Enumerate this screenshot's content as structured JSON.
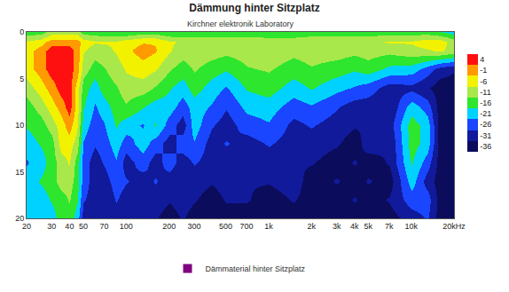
{
  "chart_data": {
    "type": "heatmap",
    "title": "Dämmung hinter Sitzplatz",
    "subtitle": "Kirchner elektronik Laboratory",
    "log": "x",
    "grid": true,
    "legend": "bottom",
    "series": [
      {
        "name": "Dämmaterial hinter Sitzplatz",
        "color": "#800080"
      }
    ],
    "x": [
      20,
      25,
      30,
      35,
      40,
      45,
      50,
      60,
      70,
      85,
      100,
      130,
      160,
      200,
      250,
      300,
      400,
      500,
      700,
      1000,
      1500,
      2000,
      3000,
      4000,
      5000,
      7000,
      10000,
      13000,
      16000,
      20000
    ],
    "y": [
      0,
      1,
      2,
      4,
      6,
      8,
      10,
      12,
      14,
      16,
      18,
      20
    ],
    "z": [
      [
        -16,
        -16,
        -11,
        -11,
        -11,
        -11,
        -16,
        -16,
        -18,
        -18,
        -18,
        -16,
        -16,
        -18,
        -18,
        -18,
        -18,
        -18,
        -18,
        -18,
        -18,
        -16,
        -16,
        -16,
        -16,
        -16,
        -16,
        -16,
        -18,
        -21
      ],
      [
        -8,
        -6,
        -1,
        -1,
        -1,
        -1,
        -6,
        -8,
        -8,
        -8,
        -6,
        -4,
        -4,
        -8,
        -9,
        -9,
        -9,
        -9,
        -9,
        -10,
        -10,
        -10,
        -10,
        -10,
        -10,
        -8,
        -8,
        -6,
        -6,
        -11
      ],
      [
        -6,
        -1,
        4,
        4,
        4,
        -1,
        -8,
        -11,
        -10,
        -8,
        -5,
        -1,
        -3,
        -8,
        -11,
        -10,
        -11,
        -12,
        -11,
        -10,
        -12,
        -11,
        -11,
        -12,
        -11,
        -12,
        -10,
        -9,
        -8,
        -10
      ],
      [
        -6,
        -1,
        4,
        4,
        4,
        -1,
        -11,
        -16,
        -14,
        -11,
        -8,
        -6,
        -8,
        -13,
        -16,
        -13,
        -16,
        -18,
        -14,
        -13,
        -16,
        -14,
        -16,
        -18,
        -16,
        -20,
        -21,
        -26,
        -31,
        -33
      ],
      [
        -11,
        -6,
        -1,
        4,
        4,
        -6,
        -16,
        -21,
        -16,
        -14,
        -11,
        -11,
        -14,
        -18,
        -21,
        -16,
        -21,
        -24,
        -18,
        -16,
        -21,
        -18,
        -22,
        -24,
        -26,
        -31,
        -30,
        -33,
        -36,
        -36
      ],
      [
        -16,
        -11,
        -6,
        -1,
        4,
        -6,
        -18,
        -24,
        -21,
        -16,
        -14,
        -18,
        -21,
        -21,
        -26,
        -21,
        -24,
        -28,
        -22,
        -21,
        -26,
        -24,
        -28,
        -31,
        -31,
        -33,
        -21,
        -26,
        -36,
        -36
      ],
      [
        -18,
        -16,
        -11,
        -6,
        -1,
        -8,
        -21,
        -26,
        -24,
        -18,
        -21,
        -24,
        -18,
        -26,
        -31,
        -21,
        -28,
        -31,
        -26,
        -24,
        -30,
        -28,
        -31,
        -33,
        -33,
        -31,
        -16,
        -21,
        -36,
        -36
      ],
      [
        -21,
        -18,
        -16,
        -6,
        -6,
        -11,
        -24,
        -28,
        -26,
        -21,
        -26,
        -21,
        -26,
        -31,
        -26,
        -24,
        -31,
        -28,
        -31,
        -28,
        -31,
        -31,
        -33,
        -36,
        -31,
        -33,
        -16,
        -21,
        -36,
        -36
      ],
      [
        -24,
        -21,
        -16,
        -11,
        -8,
        -16,
        -26,
        -31,
        -28,
        -24,
        -31,
        -26,
        -31,
        -26,
        -31,
        -28,
        -31,
        -33,
        -31,
        -31,
        -33,
        -33,
        -36,
        -33,
        -36,
        -33,
        -18,
        -26,
        -36,
        -36
      ],
      [
        -21,
        -18,
        -16,
        -11,
        -11,
        -16,
        -26,
        -31,
        -31,
        -26,
        -28,
        -31,
        -28,
        -31,
        -33,
        -31,
        -33,
        -31,
        -33,
        -33,
        -31,
        -36,
        -33,
        -36,
        -33,
        -36,
        -21,
        -31,
        -36,
        -36
      ],
      [
        -21,
        -21,
        -18,
        -16,
        -13,
        -18,
        -28,
        -31,
        -33,
        -28,
        -31,
        -33,
        -31,
        -33,
        -31,
        -33,
        -36,
        -33,
        -33,
        -36,
        -33,
        -36,
        -36,
        -33,
        -36,
        -33,
        -26,
        -26,
        -36,
        -36
      ],
      [
        -21,
        -21,
        -21,
        -16,
        -16,
        -21,
        -31,
        -33,
        -33,
        -31,
        -33,
        -33,
        -33,
        -36,
        -33,
        -36,
        -36,
        -36,
        -36,
        -36,
        -36,
        -36,
        -36,
        -36,
        -36,
        -36,
        -31,
        -28,
        -36,
        -36
      ]
    ],
    "xlim": [
      20,
      20000
    ],
    "ylim": [
      20,
      0
    ],
    "xticks": [
      20,
      30,
      40,
      50,
      70,
      100,
      200,
      300,
      500,
      700,
      {
        "value": 1000,
        "label": "1k"
      },
      {
        "value": 2000,
        "label": "2k"
      },
      {
        "value": 3000,
        "label": "3k"
      },
      {
        "value": 4000,
        "label": "4k"
      },
      {
        "value": 5000,
        "label": "5k"
      },
      {
        "value": 7000,
        "label": "7k"
      },
      {
        "value": 10000,
        "label": "10k"
      },
      {
        "value": 20000,
        "label": "20kHz"
      }
    ],
    "yticks": [
      0,
      5,
      10,
      15,
      20
    ],
    "colorbar_range": [
      -38.5,
      6.5
    ],
    "colorbar_ticks": [
      4,
      -1,
      -6,
      -11,
      -16,
      -21,
      -26,
      -31,
      -36
    ]
  }
}
